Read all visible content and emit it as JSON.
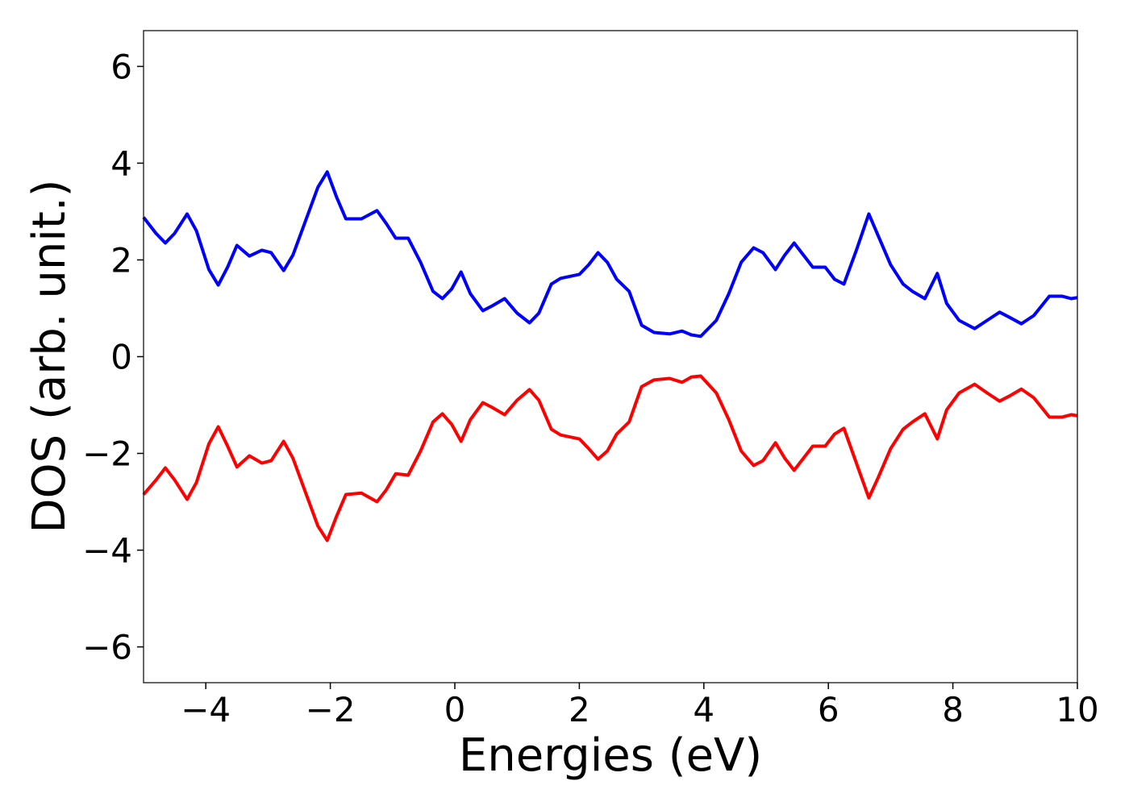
{
  "chart_data": {
    "type": "line",
    "xlabel": "Energies (eV)",
    "ylabel": "DOS (arb. unit.)",
    "x": [
      -5.0,
      -4.8,
      -4.65,
      -4.5,
      -4.3,
      -4.15,
      -3.95,
      -3.8,
      -3.65,
      -3.5,
      -3.3,
      -3.1,
      -2.95,
      -2.75,
      -2.6,
      -2.4,
      -2.2,
      -2.05,
      -1.9,
      -1.75,
      -1.5,
      -1.25,
      -1.1,
      -0.95,
      -0.75,
      -0.55,
      -0.35,
      -0.2,
      -0.05,
      0.1,
      0.25,
      0.45,
      0.6,
      0.8,
      1.0,
      1.2,
      1.35,
      1.55,
      1.7,
      2.0,
      2.15,
      2.3,
      2.45,
      2.6,
      2.8,
      3.0,
      3.2,
      3.45,
      3.65,
      3.8,
      3.95,
      4.2,
      4.4,
      4.6,
      4.8,
      4.95,
      5.15,
      5.3,
      5.45,
      5.6,
      5.75,
      5.95,
      6.1,
      6.25,
      6.45,
      6.65,
      6.8,
      7.0,
      7.2,
      7.35,
      7.55,
      7.75,
      7.9,
      8.1,
      8.35,
      8.55,
      8.75,
      8.9,
      9.1,
      9.3,
      9.55,
      9.75,
      9.9,
      10.0
    ],
    "series": [
      {
        "color": "#0000ff",
        "values": [
          2.88,
          2.55,
          2.35,
          2.55,
          2.95,
          2.6,
          1.8,
          1.48,
          1.85,
          2.3,
          2.08,
          2.2,
          2.15,
          1.78,
          2.1,
          2.8,
          3.5,
          3.82,
          3.3,
          2.85,
          2.85,
          3.02,
          2.75,
          2.45,
          2.45,
          1.95,
          1.35,
          1.2,
          1.4,
          1.75,
          1.3,
          0.95,
          1.05,
          1.2,
          0.9,
          0.7,
          0.9,
          1.5,
          1.62,
          1.7,
          1.9,
          2.15,
          1.95,
          1.6,
          1.35,
          0.65,
          0.5,
          0.47,
          0.53,
          0.45,
          0.42,
          0.75,
          1.3,
          1.95,
          2.25,
          2.15,
          1.8,
          2.1,
          2.35,
          2.1,
          1.85,
          1.85,
          1.6,
          1.5,
          2.2,
          2.95,
          2.5,
          1.9,
          1.5,
          1.35,
          1.2,
          1.72,
          1.1,
          0.75,
          0.58,
          0.75,
          0.92,
          0.82,
          0.68,
          0.85,
          1.25,
          1.25,
          1.2,
          1.22
        ]
      },
      {
        "color": "#ff0000",
        "values": [
          -2.85,
          -2.55,
          -2.3,
          -2.55,
          -2.95,
          -2.6,
          -1.8,
          -1.45,
          -1.85,
          -2.28,
          -2.05,
          -2.2,
          -2.15,
          -1.75,
          -2.1,
          -2.8,
          -3.5,
          -3.8,
          -3.3,
          -2.85,
          -2.82,
          -3.0,
          -2.75,
          -2.42,
          -2.45,
          -1.95,
          -1.35,
          -1.18,
          -1.4,
          -1.75,
          -1.3,
          -0.95,
          -1.05,
          -1.2,
          -0.9,
          -0.68,
          -0.9,
          -1.5,
          -1.62,
          -1.7,
          -1.9,
          -2.12,
          -1.95,
          -1.6,
          -1.35,
          -0.62,
          -0.48,
          -0.45,
          -0.53,
          -0.42,
          -0.4,
          -0.75,
          -1.3,
          -1.95,
          -2.25,
          -2.15,
          -1.78,
          -2.1,
          -2.35,
          -2.1,
          -1.85,
          -1.85,
          -1.6,
          -1.48,
          -2.2,
          -2.92,
          -2.5,
          -1.9,
          -1.5,
          -1.35,
          -1.18,
          -1.7,
          -1.1,
          -0.75,
          -0.57,
          -0.75,
          -0.92,
          -0.82,
          -0.67,
          -0.85,
          -1.25,
          -1.25,
          -1.2,
          -1.22
        ]
      }
    ],
    "xlim": [
      -5,
      10
    ],
    "xticks": [
      {
        "value": -4,
        "label": "−4"
      },
      {
        "value": -2,
        "label": "−2"
      },
      0,
      2,
      4,
      6,
      8,
      10
    ],
    "ylim": [
      -6.74,
      6.74
    ],
    "yticks": [
      {
        "value": -6,
        "label": "−6"
      },
      {
        "value": -4,
        "label": "−4"
      },
      {
        "value": -2,
        "label": "−2"
      },
      0,
      2,
      4,
      6
    ]
  }
}
